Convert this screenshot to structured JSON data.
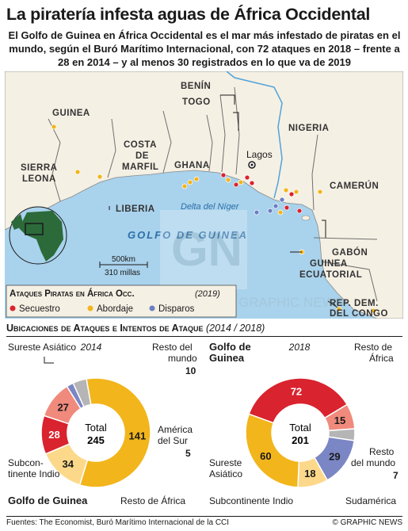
{
  "title": "La piratería infesta aguas de África Occidental",
  "subtitle": "El Golfo de Guinea en África Occidental es el mar más infestado de piratas en el mundo, según el Buró Marítimo Internacional, con 72 ataques en 2018 – frente a 28 en 2014 – y al menos 30 registrados en lo que va de 2019",
  "map": {
    "countries": [
      "BENÍN",
      "TOGO",
      "GUINEA",
      "NIGERIA",
      "COSTA",
      "DE",
      "MARFIL",
      "SIERRA",
      "LEONA",
      "GHANA",
      "LIBERIA",
      "CAMERÚN",
      "GUINEA",
      "ECUATORIAL",
      "GABÓN",
      "REP. DEM.",
      "DEL CONGO"
    ],
    "city": "Lagos",
    "delta": "Delta del Níger",
    "sea": "GOLFO DE GUINEA",
    "scale_km": "500km",
    "scale_mi": "310 millas",
    "legend": {
      "title": "Ataques Piratas en África Occ.",
      "year": "(2019)",
      "items": [
        {
          "label": "Secuestro",
          "color": "#d9232e"
        },
        {
          "label": "Abordaje",
          "color": "#f2b51b"
        },
        {
          "label": "Disparos",
          "color": "#6b7fc1"
        }
      ]
    },
    "watermark": "GRAPHIC NEWS"
  },
  "section": {
    "title": "Ubicaciones de Ataques e Intentos de Ataque",
    "years": "(2014 / 2018)"
  },
  "chart_data": [
    {
      "type": "pie",
      "year": "2014",
      "total_label": "Total",
      "total": 245,
      "slices": [
        {
          "label": "Sureste Asiático",
          "value": 141,
          "color": "#f2b51b"
        },
        {
          "label": "Subcontinente Indio",
          "value": 34,
          "color": "#fcd98a"
        },
        {
          "label": "Golfo de Guinea",
          "value": 28,
          "color": "#d9232e"
        },
        {
          "label": "Resto de África",
          "value": 27,
          "color": "#f08a7c"
        },
        {
          "label": "América del Sur",
          "value": 5,
          "color": "#7b86c4"
        },
        {
          "label": "Resto del mundo",
          "value": 10,
          "color": "#b5b5b5"
        }
      ]
    },
    {
      "type": "pie",
      "year": "2018",
      "total_label": "Total",
      "total": 201,
      "slices": [
        {
          "label": "Golfo de Guinea",
          "value": 72,
          "color": "#d9232e"
        },
        {
          "label": "Resto de África",
          "value": 15,
          "color": "#f08a7c"
        },
        {
          "label": "Resto del mundo",
          "value": 7,
          "color": "#b5b5b5"
        },
        {
          "label": "Sudamérica",
          "value": 29,
          "color": "#7b86c4"
        },
        {
          "label": "Subcontinente Indio",
          "value": 18,
          "color": "#fcd98a"
        },
        {
          "label": "Sureste Asiático",
          "value": 60,
          "color": "#f2b51b"
        }
      ]
    }
  ],
  "callouts": {
    "c2014": {
      "sea": "Sureste Asiático",
      "rest_world_1": "Resto del",
      "rest_world_2": "mundo",
      "rest_world_val": "10",
      "sa_1": "América",
      "sa_2": "del Sur",
      "sa_val": "5",
      "india_1": "Subcon-",
      "india_2": "tinente Indio",
      "gulf": "Golfo de Guinea",
      "rest_africa": "Resto de África"
    },
    "c2018": {
      "gulf_1": "Golfo de",
      "gulf_2": "Guinea",
      "rest_africa_1": "Resto de",
      "rest_africa_2": "África",
      "sea_1": "Sureste",
      "sea_2": "Asiático",
      "rest_world": "Resto",
      "rest_world_2": "del mundo",
      "rest_world_val": "7",
      "india": "Subcontinente Indio",
      "sa": "Sudamérica"
    }
  },
  "footer": {
    "sources": "Fuentes: The Economist, Buró Marítimo Internacional de la CCI",
    "credit": "© GRAPHIC NEWS"
  }
}
